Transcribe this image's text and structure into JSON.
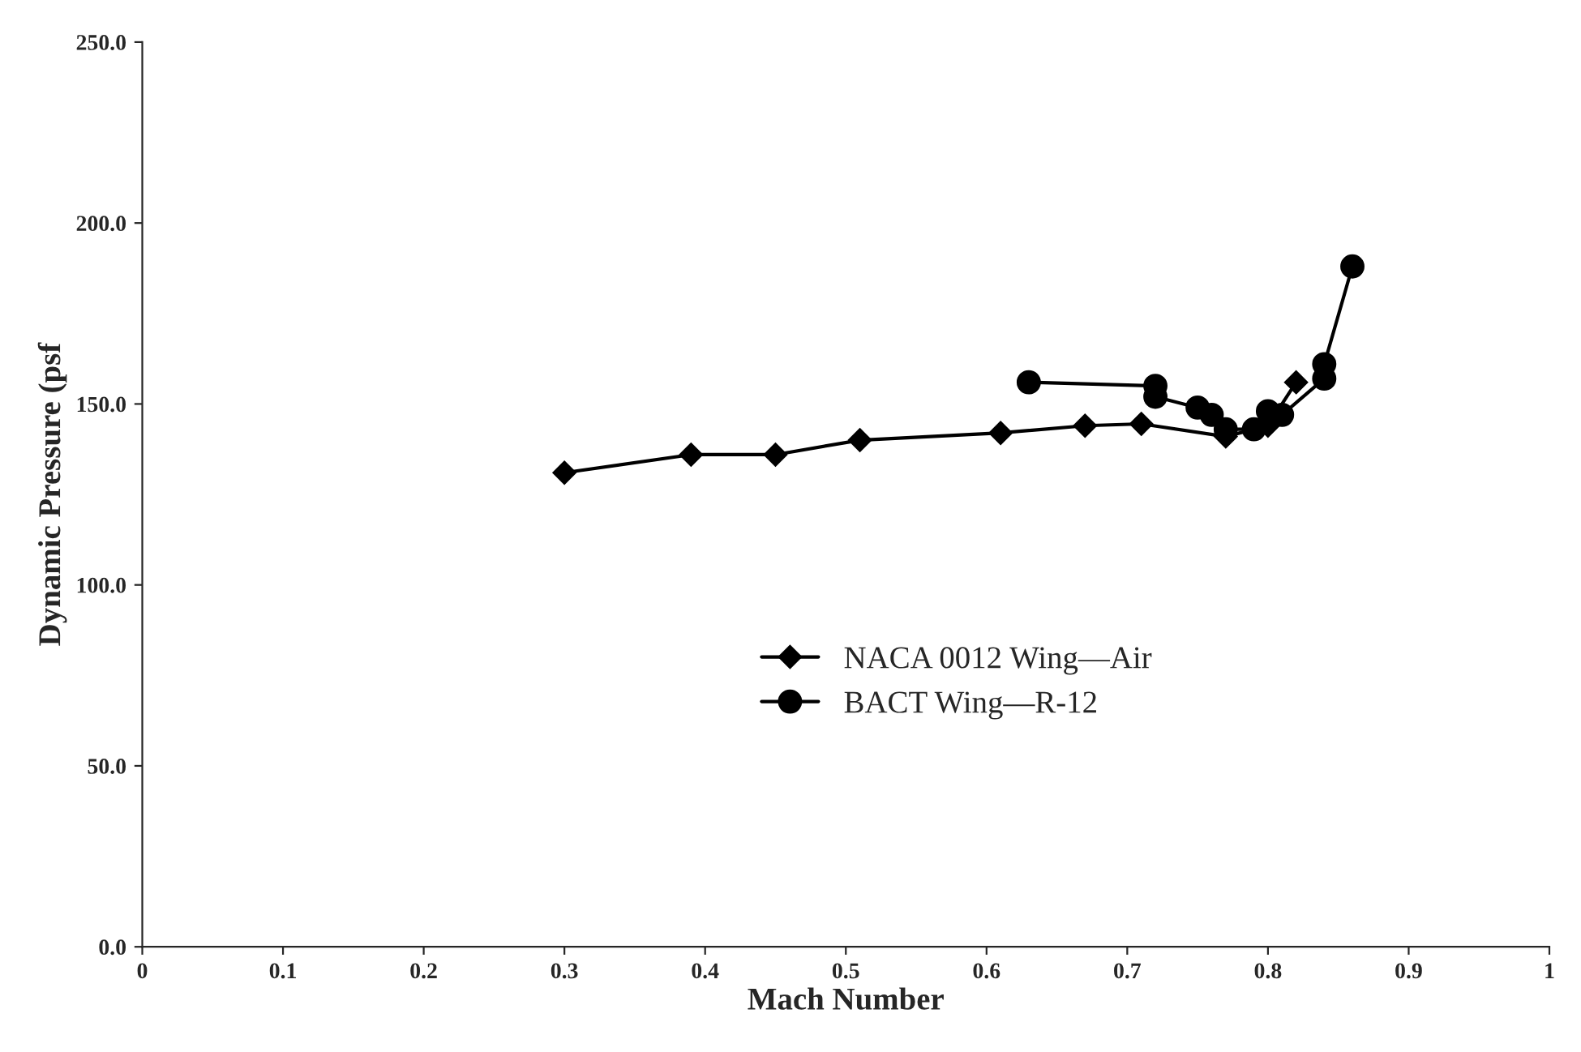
{
  "chart_data": {
    "type": "line",
    "xlabel": "Mach Number",
    "ylabel": "Dynamic Pressure (psf",
    "xlim": [
      0,
      1
    ],
    "xticks": [
      {
        "value": 0,
        "label": "0"
      },
      0.1,
      0.2,
      0.3,
      0.4,
      0.5,
      0.6,
      0.7,
      0.8,
      0.9,
      {
        "value": 1,
        "label": "1"
      }
    ],
    "ylim": [
      0,
      250
    ],
    "yticks": [
      {
        "value": 0,
        "label": "0.0"
      },
      {
        "value": 50,
        "label": "50.0"
      },
      {
        "value": 100,
        "label": "100.0"
      },
      {
        "value": 150,
        "label": "150.0"
      },
      {
        "value": 200,
        "label": "200.0"
      },
      {
        "value": 250,
        "label": "250.0"
      }
    ],
    "grid": false,
    "legend": "center",
    "line_style": "solid",
    "series": [
      {
        "name": "NACA 0012 Wing—Air",
        "color": "#000000",
        "marker": "diamond",
        "x": [
          0.3,
          0.39,
          0.45,
          0.51,
          0.61,
          0.67,
          0.71,
          0.77,
          0.8,
          0.82
        ],
        "values": [
          131,
          136,
          136,
          140,
          142,
          144,
          144.5,
          141,
          144,
          156
        ]
      },
      {
        "name": "BACT Wing—R-12",
        "color": "#000000",
        "marker": "circle",
        "x": [
          0.63,
          0.72,
          0.72,
          0.75,
          0.76,
          0.77,
          0.79,
          0.8,
          0.81,
          0.84,
          0.84,
          0.86
        ],
        "values": [
          156,
          155,
          152,
          149,
          147,
          143,
          143,
          148,
          147,
          157,
          161,
          188
        ]
      }
    ]
  }
}
